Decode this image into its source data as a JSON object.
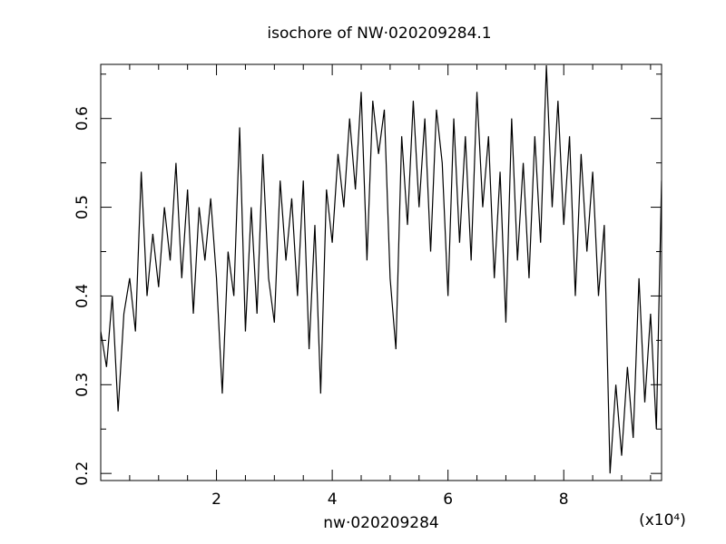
{
  "chart_data": {
    "type": "line",
    "title": "isochore of NW·020209284.1",
    "x_label": "nw·020209284",
    "x_multiplier": "(x10⁴)",
    "x": [
      0.0,
      0.1,
      0.2,
      0.3,
      0.4,
      0.5,
      0.6,
      0.7,
      0.8,
      0.9,
      1.0,
      1.1,
      1.2,
      1.3,
      1.4,
      1.5,
      1.6,
      1.7,
      1.8,
      1.9,
      2.0,
      2.1,
      2.2,
      2.3,
      2.4,
      2.5,
      2.6,
      2.7,
      2.8,
      2.9,
      3.0,
      3.1,
      3.2,
      3.3,
      3.4,
      3.5,
      3.6,
      3.7,
      3.8,
      3.9,
      4.0,
      4.1,
      4.2,
      4.3,
      4.4,
      4.5,
      4.6,
      4.7,
      4.8,
      4.9,
      5.0,
      5.1,
      5.2,
      5.3,
      5.4,
      5.5,
      5.6,
      5.7,
      5.8,
      5.9,
      6.0,
      6.1,
      6.2,
      6.3,
      6.4,
      6.5,
      6.6,
      6.7,
      6.8,
      6.9,
      7.0,
      7.1,
      7.2,
      7.3,
      7.4,
      7.5,
      7.6,
      7.7,
      7.8,
      7.9,
      8.0,
      8.1,
      8.2,
      8.3,
      8.4,
      8.5,
      8.6,
      8.7,
      8.8,
      8.9,
      9.0,
      9.1,
      9.2,
      9.3,
      9.4,
      9.5,
      9.6,
      9.69
    ],
    "series": [
      {
        "color": "#000000",
        "values": [
          0.36,
          0.32,
          0.4,
          0.27,
          0.38,
          0.42,
          0.36,
          0.54,
          0.4,
          0.47,
          0.41,
          0.5,
          0.44,
          0.55,
          0.42,
          0.52,
          0.38,
          0.5,
          0.44,
          0.51,
          0.42,
          0.29,
          0.45,
          0.4,
          0.59,
          0.36,
          0.5,
          0.38,
          0.56,
          0.42,
          0.37,
          0.53,
          0.44,
          0.51,
          0.4,
          0.53,
          0.34,
          0.48,
          0.29,
          0.52,
          0.46,
          0.56,
          0.5,
          0.6,
          0.52,
          0.63,
          0.44,
          0.62,
          0.56,
          0.61,
          0.42,
          0.34,
          0.58,
          0.48,
          0.62,
          0.5,
          0.6,
          0.45,
          0.61,
          0.55,
          0.4,
          0.6,
          0.46,
          0.58,
          0.44,
          0.63,
          0.5,
          0.58,
          0.42,
          0.54,
          0.37,
          0.6,
          0.44,
          0.55,
          0.42,
          0.58,
          0.46,
          0.66,
          0.5,
          0.62,
          0.48,
          0.58,
          0.4,
          0.56,
          0.45,
          0.54,
          0.4,
          0.48,
          0.2,
          0.3,
          0.22,
          0.32,
          0.24,
          0.42,
          0.28,
          0.38,
          0.25,
          0.53
        ]
      }
    ],
    "xlim": [
      0,
      9.69
    ],
    "ylim": [
      0.192,
      0.661
    ],
    "xticks": [
      2,
      4,
      6,
      8
    ],
    "yticks": [
      0.2,
      0.3,
      0.4,
      0.5,
      0.6
    ],
    "xticks_minor": [
      0.5,
      1,
      1.5,
      2.5,
      3,
      3.5,
      4.5,
      5,
      5.5,
      6.5,
      7,
      7.5,
      8.5,
      9,
      9.5
    ],
    "yticks_minor": [
      0.25,
      0.35,
      0.45,
      0.55,
      0.65
    ]
  }
}
